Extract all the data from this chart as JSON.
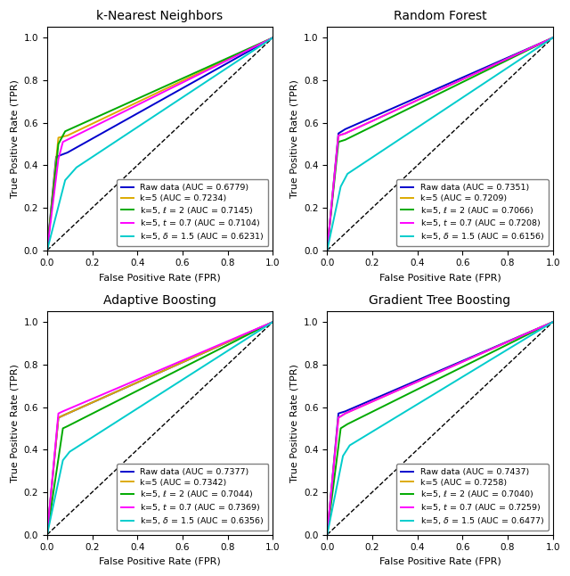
{
  "subplots": [
    {
      "title": "k-Nearest Neighbors",
      "curves": [
        {
          "label": "Raw data (AUC = 0.6779)",
          "color": "#0000cc",
          "points": [
            [
              0,
              0
            ],
            [
              0.04,
              0.44
            ],
            [
              0.09,
              0.46
            ],
            [
              1.0,
              1.0
            ]
          ]
        },
        {
          "label": "k=5 (AUC = 0.7234)",
          "color": "#ddaa00",
          "points": [
            [
              0,
              0
            ],
            [
              0.05,
              0.53
            ],
            [
              0.09,
              0.54
            ],
            [
              1.0,
              1.0
            ]
          ]
        },
        {
          "label": "k=5, $\\ell$ = 2 (AUC = 0.7145)",
          "color": "#00aa00",
          "points": [
            [
              0,
              0
            ],
            [
              0.05,
              0.5
            ],
            [
              0.08,
              0.56
            ],
            [
              1.0,
              1.0
            ]
          ]
        },
        {
          "label": "k=5, $t$ = 0.7 (AUC = 0.7104)",
          "color": "#ff00ff",
          "points": [
            [
              0,
              0
            ],
            [
              0.05,
              0.43
            ],
            [
              0.07,
              0.51
            ],
            [
              1.0,
              1.0
            ]
          ]
        },
        {
          "label": "k=5, $\\delta$ = 1.5 (AUC = 0.6231)",
          "color": "#00cccc",
          "points": [
            [
              0,
              0
            ],
            [
              0.08,
              0.33
            ],
            [
              0.13,
              0.39
            ],
            [
              1.0,
              1.0
            ]
          ]
        }
      ]
    },
    {
      "title": "Random Forest",
      "curves": [
        {
          "label": "Raw data (AUC = 0.7351)",
          "color": "#0000cc",
          "points": [
            [
              0,
              0
            ],
            [
              0.05,
              0.55
            ],
            [
              0.08,
              0.57
            ],
            [
              1.0,
              1.0
            ]
          ]
        },
        {
          "label": "k=5 (AUC = 0.7209)",
          "color": "#ddaa00",
          "points": [
            [
              0,
              0
            ],
            [
              0.05,
              0.54
            ],
            [
              0.08,
              0.55
            ],
            [
              1.0,
              1.0
            ]
          ]
        },
        {
          "label": "k=5, $\\ell$ = 2 (AUC = 0.7066)",
          "color": "#00aa00",
          "points": [
            [
              0,
              0
            ],
            [
              0.05,
              0.51
            ],
            [
              0.08,
              0.52
            ],
            [
              1.0,
              1.0
            ]
          ]
        },
        {
          "label": "k=5, $t$ = 0.7 (AUC = 0.7208)",
          "color": "#ff00ff",
          "points": [
            [
              0,
              0
            ],
            [
              0.05,
              0.54
            ],
            [
              0.08,
              0.55
            ],
            [
              1.0,
              1.0
            ]
          ]
        },
        {
          "label": "k=5, $\\delta$ = 1.5 (AUC = 0.6156)",
          "color": "#00cccc",
          "points": [
            [
              0,
              0
            ],
            [
              0.06,
              0.3
            ],
            [
              0.09,
              0.36
            ],
            [
              1.0,
              1.0
            ]
          ]
        }
      ]
    },
    {
      "title": "Adaptive Boosting",
      "curves": [
        {
          "label": "Raw data (AUC = 0.7377)",
          "color": "#0000cc",
          "points": [
            [
              0,
              0
            ],
            [
              0.05,
              0.55
            ],
            [
              0.07,
              0.56
            ],
            [
              1.0,
              1.0
            ]
          ]
        },
        {
          "label": "k=5 (AUC = 0.7342)",
          "color": "#ddaa00",
          "points": [
            [
              0,
              0
            ],
            [
              0.05,
              0.55
            ],
            [
              0.07,
              0.56
            ],
            [
              1.0,
              1.0
            ]
          ]
        },
        {
          "label": "k=5, $\\ell$ = 2 (AUC = 0.7044)",
          "color": "#00aa00",
          "points": [
            [
              0,
              0
            ],
            [
              0.07,
              0.5
            ],
            [
              0.09,
              0.51
            ],
            [
              1.0,
              1.0
            ]
          ]
        },
        {
          "label": "k=5, $t$ = 0.7 (AUC = 0.7369)",
          "color": "#ff00ff",
          "points": [
            [
              0,
              0
            ],
            [
              0.05,
              0.57
            ],
            [
              0.07,
              0.58
            ],
            [
              1.0,
              1.0
            ]
          ]
        },
        {
          "label": "k=5, $\\delta$ = 1.5 (AUC = 0.6356)",
          "color": "#00cccc",
          "points": [
            [
              0,
              0
            ],
            [
              0.07,
              0.35
            ],
            [
              0.1,
              0.39
            ],
            [
              1.0,
              1.0
            ]
          ]
        }
      ]
    },
    {
      "title": "Gradient Tree Boosting",
      "curves": [
        {
          "label": "Raw data (AUC = 0.7437)",
          "color": "#0000cc",
          "points": [
            [
              0,
              0
            ],
            [
              0.05,
              0.57
            ],
            [
              0.08,
              0.58
            ],
            [
              1.0,
              1.0
            ]
          ]
        },
        {
          "label": "k=5 (AUC = 0.7258)",
          "color": "#ddaa00",
          "points": [
            [
              0,
              0
            ],
            [
              0.05,
              0.55
            ],
            [
              0.08,
              0.57
            ],
            [
              1.0,
              1.0
            ]
          ]
        },
        {
          "label": "k=5, $\\ell$ = 2 (AUC = 0.7040)",
          "color": "#00aa00",
          "points": [
            [
              0,
              0
            ],
            [
              0.06,
              0.5
            ],
            [
              0.09,
              0.52
            ],
            [
              1.0,
              1.0
            ]
          ]
        },
        {
          "label": "k=5, $t$ = 0.7 (AUC = 0.7259)",
          "color": "#ff00ff",
          "points": [
            [
              0,
              0
            ],
            [
              0.05,
              0.55
            ],
            [
              0.08,
              0.57
            ],
            [
              1.0,
              1.0
            ]
          ]
        },
        {
          "label": "k=5, $\\delta$ = 1.5 (AUC = 0.6477)",
          "color": "#00cccc",
          "points": [
            [
              0,
              0
            ],
            [
              0.07,
              0.37
            ],
            [
              0.1,
              0.42
            ],
            [
              1.0,
              1.0
            ]
          ]
        }
      ]
    }
  ],
  "xlabel": "False Positive Rate (FPR)",
  "ylabel": "True Positive Rate (TPR)",
  "diagonal_color": "black",
  "diagonal_style": "--",
  "xlim": [
    0.0,
    1.0
  ],
  "ylim": [
    0.0,
    1.05
  ],
  "legend_loc": "lower right",
  "legend_fontsize": 6.8,
  "title_fontsize": 10,
  "label_fontsize": 8,
  "tick_fontsize": 7.5,
  "linewidth": 1.4
}
